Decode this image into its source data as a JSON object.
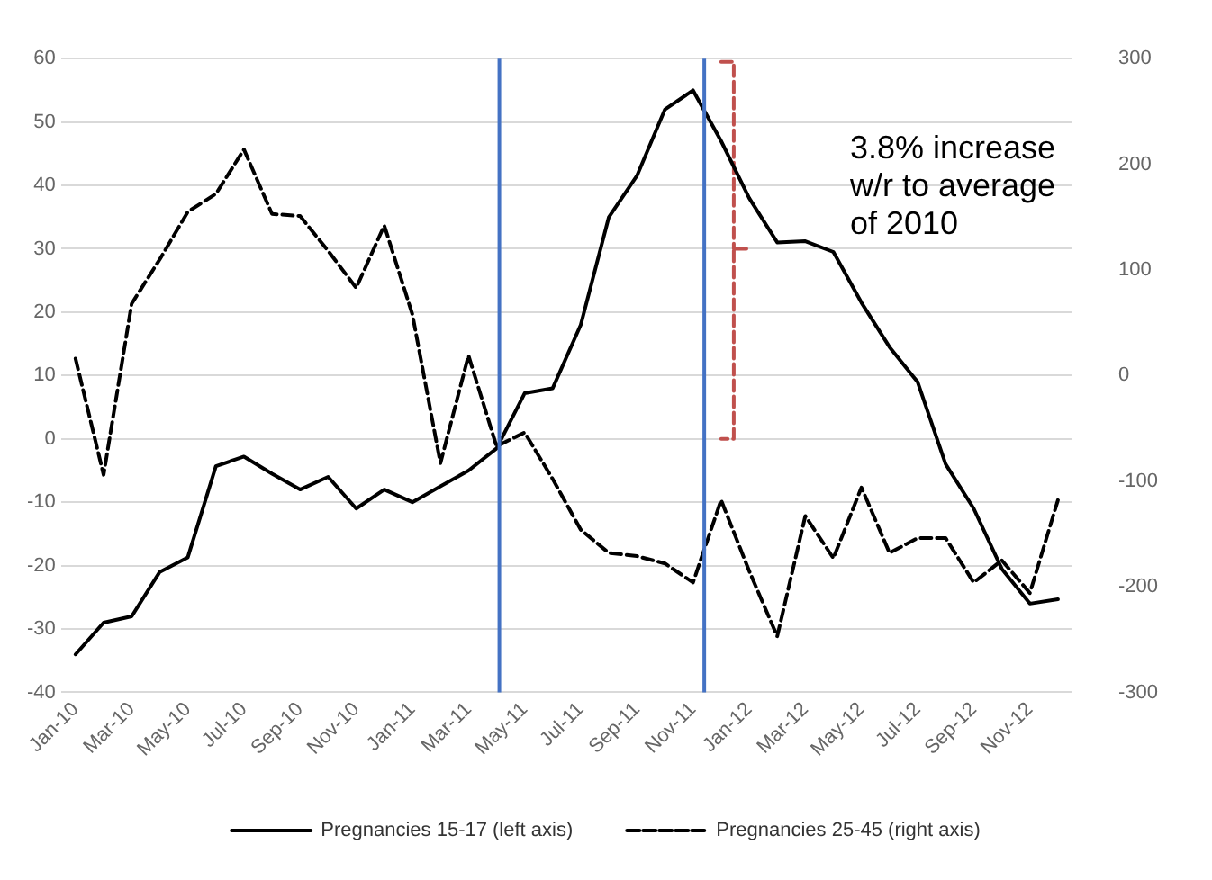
{
  "chart_data": {
    "type": "line",
    "x": [
      "2010-01",
      "2010-02",
      "2010-03",
      "2010-04",
      "2010-05",
      "2010-06",
      "2010-07",
      "2010-08",
      "2010-09",
      "2010-10",
      "2010-11",
      "2010-12",
      "2011-01",
      "2011-02",
      "2011-03",
      "2011-04",
      "2011-05",
      "2011-06",
      "2011-07",
      "2011-08",
      "2011-09",
      "2011-10",
      "2011-11",
      "2011-12",
      "2012-01",
      "2012-02",
      "2012-03",
      "2012-04",
      "2012-05",
      "2012-06",
      "2012-07",
      "2012-08",
      "2012-09",
      "2012-10",
      "2012-11",
      "2012-12"
    ],
    "series": [
      {
        "name": "Pregnancies 15-17 (left axis)",
        "color": "#000000",
        "line_style": "solid",
        "values": [
          -34,
          -29,
          -28,
          -21,
          -18.7,
          -4.3,
          -2.8,
          -5.5,
          -8,
          -6,
          -11,
          -8,
          -10,
          -7.5,
          -5,
          -1.5,
          7.2,
          8,
          18,
          35,
          41.5,
          52,
          55,
          47,
          38,
          31,
          31.2,
          29.5,
          21.5,
          14.5,
          9,
          -4,
          -11,
          -20.5,
          -26,
          -25.3
        ]
      },
      {
        "name": "Pregnancies 25-45 (right axis)",
        "color": "#000000",
        "line_style": "dashed",
        "axis": "y2",
        "values": [
          16,
          -94,
          68,
          110,
          155,
          172,
          214,
          153,
          151,
          118,
          83,
          142,
          58,
          -83,
          19,
          -67,
          -54,
          -98,
          -146,
          -168,
          -171,
          -178,
          -196,
          -118,
          -185,
          -247,
          -133,
          -173,
          -106,
          -168,
          -154,
          -154,
          -196,
          -175,
          -206,
          -118
        ]
      },
      {
        "type": "line",
        "color": "#c0504d",
        "line_style": "dashed",
        "x": [
          "2011-12-01",
          "2011-12-15",
          "2011-12-15",
          "2011-12-29",
          "2011-12-15",
          "2011-12-15",
          "2011-12-01"
        ],
        "values": [
          59.5,
          59.5,
          30,
          30,
          30,
          0,
          0
        ]
      }
    ],
    "xlim": [
      "2009-12-16",
      "2012-12-16"
    ],
    "xticks": [
      {
        "value": "2010-01",
        "label": "Jan-10"
      },
      {
        "value": "2010-03",
        "label": "Mar-10"
      },
      {
        "value": "2010-05",
        "label": "May-10"
      },
      {
        "value": "2010-07",
        "label": "Jul-10"
      },
      {
        "value": "2010-09",
        "label": "Sep-10"
      },
      {
        "value": "2010-11",
        "label": "Nov-10"
      },
      {
        "value": "2011-01",
        "label": "Jan-11"
      },
      {
        "value": "2011-03",
        "label": "Mar-11"
      },
      {
        "value": "2011-05",
        "label": "May-11"
      },
      {
        "value": "2011-07",
        "label": "Jul-11"
      },
      {
        "value": "2011-09",
        "label": "Sep-11"
      },
      {
        "value": "2011-11",
        "label": "Nov-11"
      },
      {
        "value": "2012-01",
        "label": "Jan-12"
      },
      {
        "value": "2012-03",
        "label": "Mar-12"
      },
      {
        "value": "2012-05",
        "label": "May-12"
      },
      {
        "value": "2012-07",
        "label": "Jul-12"
      },
      {
        "value": "2012-09",
        "label": "Sep-12"
      },
      {
        "value": "2012-11",
        "label": "Nov-12"
      }
    ],
    "ylim": [
      -40,
      60
    ],
    "yticks": [
      -40,
      -30,
      -20,
      -10,
      0,
      10,
      20,
      30,
      40,
      50,
      60
    ],
    "y2lim": [
      -300,
      300
    ],
    "y2ticks": [
      -300,
      -200,
      -100,
      0,
      100,
      200,
      300
    ],
    "ref_lines": [
      {
        "axis": "x",
        "value": "2011-04-04",
        "color": "#4472c4"
      },
      {
        "axis": "x",
        "value": "2011-11-13",
        "color": "#4472c4"
      }
    ],
    "annotations": [
      "3.8% increase w/r to average of 2010"
    ],
    "grid": "y",
    "legend": "bottom",
    "marker": "none"
  }
}
